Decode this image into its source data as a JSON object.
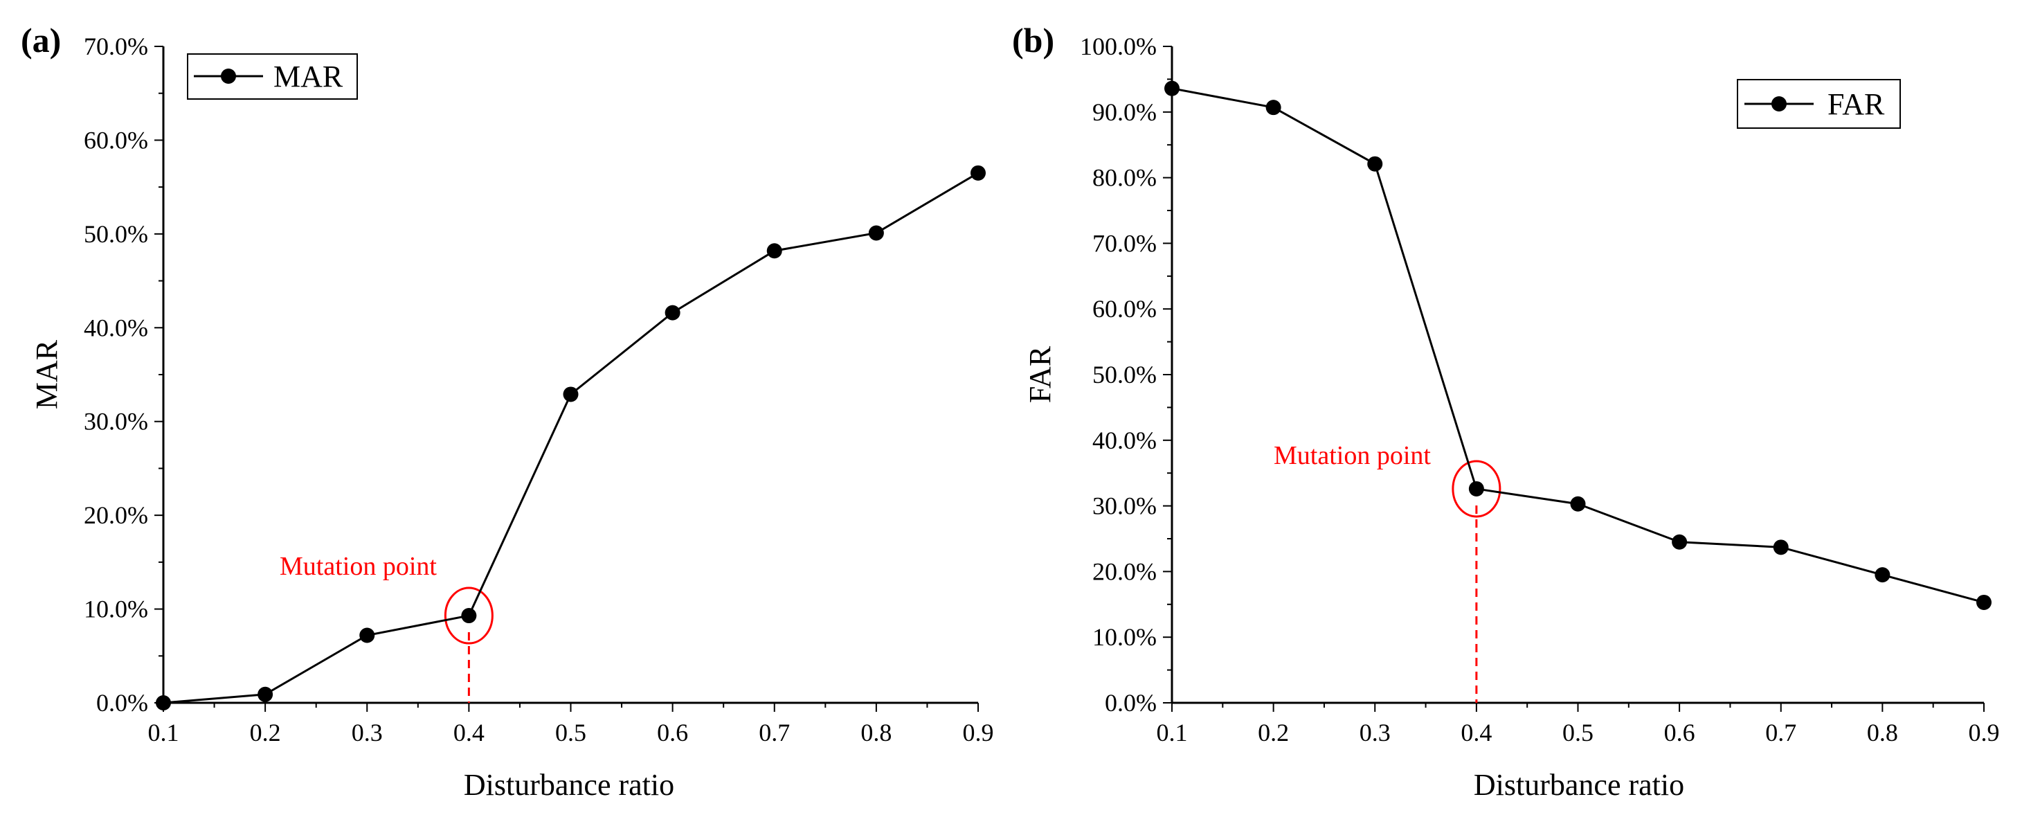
{
  "chart_data": [
    {
      "type": "line",
      "panel_label": "(a)",
      "xlabel": "Disturbance ratio",
      "ylabel": "MAR",
      "x": [
        0.1,
        0.2,
        0.3,
        0.4,
        0.5,
        0.6,
        0.7,
        0.8,
        0.9
      ],
      "x_tick_labels": [
        "0.1",
        "0.2",
        "0.3",
        "0.4",
        "0.5",
        "0.6",
        "0.7",
        "0.8",
        "0.9"
      ],
      "xlim": [
        0.1,
        0.9
      ],
      "ylim": [
        0,
        70
      ],
      "y_ticks": [
        0,
        10,
        20,
        30,
        40,
        50,
        60,
        70
      ],
      "y_tick_labels": [
        "0.0%",
        "10.0%",
        "20.0%",
        "30.0%",
        "40.0%",
        "50.0%",
        "60.0%",
        "70.0%"
      ],
      "series": [
        {
          "name": "MAR",
          "values": [
            0.0,
            0.9,
            7.2,
            9.3,
            32.9,
            41.6,
            48.2,
            50.1,
            56.5
          ]
        }
      ],
      "legend": {
        "label": "MAR",
        "position": "top-left"
      },
      "annotation": {
        "text": "Mutation point",
        "x": 0.4,
        "y": 9.3,
        "color": "#ff0000"
      }
    },
    {
      "type": "line",
      "panel_label": "(b)",
      "xlabel": "Disturbance ratio",
      "ylabel": "FAR",
      "x": [
        0.1,
        0.2,
        0.3,
        0.4,
        0.5,
        0.6,
        0.7,
        0.8,
        0.9
      ],
      "x_tick_labels": [
        "0.1",
        "0.2",
        "0.3",
        "0.4",
        "0.5",
        "0.6",
        "0.7",
        "0.8",
        "0.9"
      ],
      "xlim": [
        0.1,
        0.9
      ],
      "ylim": [
        0,
        100
      ],
      "y_ticks": [
        0,
        10,
        20,
        30,
        40,
        50,
        60,
        70,
        80,
        90,
        100
      ],
      "y_tick_labels": [
        "0.0%",
        "10.0%",
        "20.0%",
        "30.0%",
        "40.0%",
        "50.0%",
        "60.0%",
        "70.0%",
        "80.0%",
        "90.0%",
        "100.0%"
      ],
      "series": [
        {
          "name": "FAR",
          "values": [
            93.6,
            90.7,
            82.1,
            32.6,
            30.3,
            24.5,
            23.7,
            19.5,
            15.3
          ]
        }
      ],
      "legend": {
        "label": "FAR",
        "position": "top-right"
      },
      "annotation": {
        "text": "Mutation point",
        "x": 0.4,
        "y": 32.6,
        "color": "#ff0000"
      }
    }
  ]
}
